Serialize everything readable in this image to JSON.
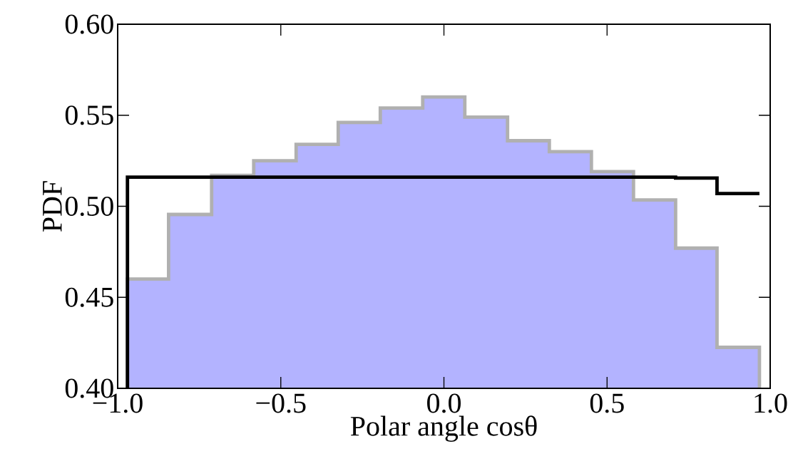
{
  "chart_data": {
    "type": "histogram",
    "xlabel": "Polar angle cosθ",
    "ylabel": "PDF",
    "bins": [
      -0.97,
      -0.844,
      -0.712,
      -0.583,
      -0.453,
      -0.324,
      -0.195,
      -0.065,
      0.064,
      0.195,
      0.323,
      0.452,
      0.581,
      0.71,
      0.837,
      0.967
    ],
    "series": [
      {
        "color": "#b3b3ff",
        "values": [
          0.46,
          0.4955,
          0.517,
          0.525,
          0.534,
          0.546,
          0.554,
          0.56,
          0.549,
          0.536,
          0.53,
          0.519,
          0.5035,
          0.477,
          0.4225
        ]
      },
      {
        "type": "step",
        "color": "#000000",
        "x": [
          -0.97,
          -0.97,
          -0.844,
          -0.712,
          -0.583,
          -0.453,
          -0.324,
          -0.195,
          -0.065,
          0.064,
          0.195,
          0.323,
          0.452,
          0.581,
          0.71,
          0.837,
          0.967
        ],
        "values": [
          0.4,
          0.516,
          0.516,
          0.516,
          0.516,
          0.516,
          0.516,
          0.516,
          0.516,
          0.516,
          0.516,
          0.516,
          0.516,
          0.516,
          0.5155,
          0.507,
          0.507
        ]
      }
    ],
    "xlim": [
      -1.0,
      1.0
    ],
    "ylim": [
      0.4,
      0.6
    ],
    "xticks": [
      {
        "value": -1.0,
        "label": "−1.0"
      },
      {
        "value": -0.5,
        "label": "−0.5"
      },
      {
        "value": 0.0,
        "label": "0.0"
      },
      {
        "value": 0.5,
        "label": "0.5"
      },
      {
        "value": 1.0,
        "label": "1.0"
      }
    ],
    "yticks": [
      {
        "value": 0.4,
        "label": "0.40"
      },
      {
        "value": 0.45,
        "label": "0.45"
      },
      {
        "value": 0.5,
        "label": "0.50"
      },
      {
        "value": 0.55,
        "label": "0.55"
      },
      {
        "value": 0.6,
        "label": "0.60"
      }
    ]
  }
}
